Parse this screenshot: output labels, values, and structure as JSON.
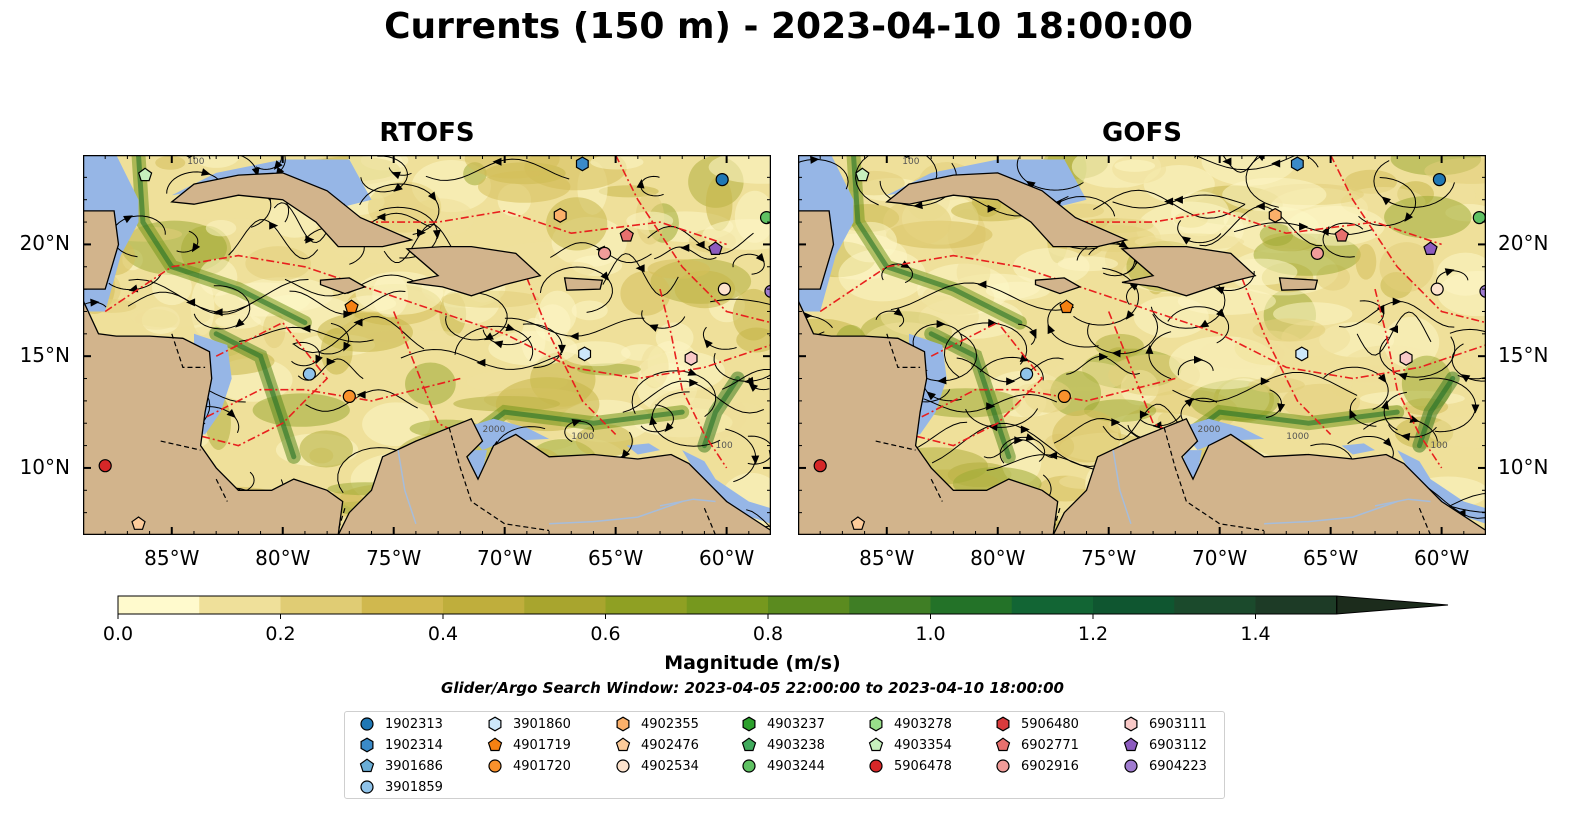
{
  "title": "Currents (150 m) - 2023-04-10 18:00:00",
  "panels": [
    {
      "id": "rtofs",
      "title": "RTOFS"
    },
    {
      "id": "gofs",
      "title": "GOFS"
    }
  ],
  "map": {
    "lon_ticks": [
      "85°W",
      "80°W",
      "75°W",
      "70°W",
      "65°W",
      "60°W"
    ],
    "lat_ticks": [
      "20°N",
      "15°N",
      "10°N"
    ],
    "contour_labels": [
      "100",
      "1000",
      "2000"
    ],
    "colors": {
      "land": "#d2b48c",
      "shallow_water": "#96b6e6",
      "eez_line": "#e8201e",
      "borders": "#000000",
      "streamlines": "#000000",
      "rivers": "#a6bddb"
    }
  },
  "colorbar": {
    "label": "Magnitude (m/s)",
    "ticks": [
      "0.0",
      "0.2",
      "0.4",
      "0.6",
      "0.8",
      "1.0",
      "1.2",
      "1.4"
    ],
    "range": [
      0.0,
      1.5
    ],
    "extend": "max",
    "colors": [
      "#fffacd",
      "#efe09a",
      "#e0cc74",
      "#d0b84e",
      "#bfae3c",
      "#a8a52e",
      "#8fa023",
      "#76981e",
      "#5b8b1f",
      "#3f7e25",
      "#237228",
      "#126534",
      "#0f5630",
      "#1b4a2c",
      "#1d3b26",
      "#1c2c1c"
    ]
  },
  "search_window": "Glider/Argo Search Window: 2023-04-05 22:00:00 to 2023-04-10 18:00:00",
  "legend": [
    {
      "id": "1902313",
      "marker": "circle",
      "color": "#1f77b4"
    },
    {
      "id": "1902314",
      "marker": "hexagon",
      "color": "#3a8ac8"
    },
    {
      "id": "3901686",
      "marker": "pentagon",
      "color": "#6baed6"
    },
    {
      "id": "3901859",
      "marker": "circle",
      "color": "#8fc3ea"
    },
    {
      "id": "3901860",
      "marker": "hexagon",
      "color": "#cde8fb"
    },
    {
      "id": "4901719",
      "marker": "pentagon",
      "color": "#f58112"
    },
    {
      "id": "4901720",
      "marker": "circle",
      "color": "#f9912c"
    },
    {
      "id": "4902355",
      "marker": "hexagon",
      "color": "#fbb06a"
    },
    {
      "id": "4902476",
      "marker": "pentagon",
      "color": "#fccb9a"
    },
    {
      "id": "4902534",
      "marker": "circle",
      "color": "#fde3cd"
    },
    {
      "id": "4903237",
      "marker": "hexagon",
      "color": "#2ca02c"
    },
    {
      "id": "4903238",
      "marker": "pentagon",
      "color": "#41ab5d"
    },
    {
      "id": "4903244",
      "marker": "circle",
      "color": "#5fc163"
    },
    {
      "id": "4903278",
      "marker": "hexagon",
      "color": "#98df8a"
    },
    {
      "id": "4903354",
      "marker": "pentagon",
      "color": "#c7f0bd"
    },
    {
      "id": "5906478",
      "marker": "circle",
      "color": "#d62728"
    },
    {
      "id": "5906480",
      "marker": "hexagon",
      "color": "#d93b3c"
    },
    {
      "id": "6902771",
      "marker": "pentagon",
      "color": "#e8706e"
    },
    {
      "id": "6902916",
      "marker": "circle",
      "color": "#f19c99"
    },
    {
      "id": "6903111",
      "marker": "hexagon",
      "color": "#f9c9c7"
    },
    {
      "id": "6903112",
      "marker": "pentagon",
      "color": "#8c5bbf"
    },
    {
      "id": "6904223",
      "marker": "circle",
      "color": "#a07cd0"
    }
  ]
}
